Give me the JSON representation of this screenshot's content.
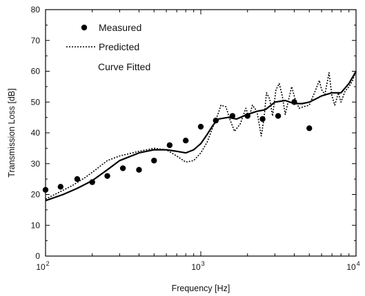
{
  "chart_data": {
    "type": "scatter",
    "title": "",
    "xlabel": "Frequency [Hz]",
    "ylabel": "Transmission Loss [dB]",
    "xscale": "log",
    "xlim": [
      100,
      10000
    ],
    "ylim": [
      0,
      80
    ],
    "x_ticks": [
      {
        "value": 100,
        "base": "10",
        "exp": "2"
      },
      {
        "value": 1000,
        "base": "10",
        "exp": "3"
      },
      {
        "value": 10000,
        "base": "10",
        "exp": "4"
      }
    ],
    "y_ticks": [
      {
        "value": 0,
        "label": "0"
      },
      {
        "value": 10,
        "label": "10"
      },
      {
        "value": 20,
        "label": "20"
      },
      {
        "value": 30,
        "label": "30"
      },
      {
        "value": 40,
        "label": "40"
      },
      {
        "value": 50,
        "label": "50"
      },
      {
        "value": 60,
        "label": "60"
      },
      {
        "value": 70,
        "label": "70"
      },
      {
        "value": 80,
        "label": "80"
      }
    ],
    "grid": false,
    "legend_position": "top-left",
    "series": [
      {
        "name": "Measured",
        "style": "marker",
        "color": "#000000",
        "points": [
          [
            100,
            21.5
          ],
          [
            125,
            22.5
          ],
          [
            160,
            25
          ],
          [
            200,
            24
          ],
          [
            250,
            26
          ],
          [
            315,
            28.5
          ],
          [
            400,
            28
          ],
          [
            500,
            31
          ],
          [
            630,
            36
          ],
          [
            800,
            37.5
          ],
          [
            1000,
            42
          ],
          [
            1250,
            44
          ],
          [
            1600,
            45.5
          ],
          [
            2000,
            45.5
          ],
          [
            2500,
            44.5
          ],
          [
            3150,
            45.5
          ],
          [
            4000,
            50
          ],
          [
            5000,
            41.5
          ]
        ]
      },
      {
        "name": "Predicted",
        "style": "dotted",
        "color": "#000000",
        "points": [
          [
            100,
            18.5
          ],
          [
            120,
            20.5
          ],
          [
            150,
            23
          ],
          [
            180,
            25.5
          ],
          [
            210,
            28
          ],
          [
            250,
            31
          ],
          [
            300,
            32.5
          ],
          [
            400,
            34
          ],
          [
            500,
            35
          ],
          [
            600,
            34.5
          ],
          [
            700,
            32.5
          ],
          [
            800,
            30.5
          ],
          [
            900,
            31
          ],
          [
            1000,
            33.5
          ],
          [
            1100,
            37
          ],
          [
            1200,
            42
          ],
          [
            1300,
            46.5
          ],
          [
            1350,
            49
          ],
          [
            1450,
            48.5
          ],
          [
            1550,
            44
          ],
          [
            1650,
            40.5
          ],
          [
            1800,
            43
          ],
          [
            1950,
            48
          ],
          [
            2050,
            45
          ],
          [
            2150,
            49
          ],
          [
            2300,
            47
          ],
          [
            2450,
            39
          ],
          [
            2550,
            44.5
          ],
          [
            2650,
            53
          ],
          [
            2780,
            51
          ],
          [
            2900,
            45.5
          ],
          [
            3050,
            54
          ],
          [
            3200,
            56
          ],
          [
            3350,
            52
          ],
          [
            3500,
            46
          ],
          [
            3650,
            50
          ],
          [
            3850,
            55
          ],
          [
            4050,
            51
          ],
          [
            4300,
            48
          ],
          [
            4600,
            48.5
          ],
          [
            5000,
            49
          ],
          [
            5500,
            54
          ],
          [
            5800,
            57
          ],
          [
            6000,
            54
          ],
          [
            6300,
            52.5
          ],
          [
            6700,
            59.5
          ],
          [
            7000,
            52
          ],
          [
            7300,
            49
          ],
          [
            7700,
            53
          ],
          [
            8000,
            50
          ],
          [
            8500,
            53.5
          ],
          [
            9000,
            55
          ],
          [
            9500,
            57
          ],
          [
            10000,
            60
          ]
        ]
      },
      {
        "name": "Curve Fitted",
        "style": "solid",
        "color": "#000000",
        "points": [
          [
            100,
            18
          ],
          [
            130,
            20
          ],
          [
            160,
            22
          ],
          [
            200,
            24.5
          ],
          [
            250,
            28
          ],
          [
            300,
            31
          ],
          [
            400,
            33.5
          ],
          [
            500,
            34.5
          ],
          [
            600,
            34.5
          ],
          [
            700,
            34
          ],
          [
            800,
            33.5
          ],
          [
            900,
            34.5
          ],
          [
            1000,
            36.5
          ],
          [
            1100,
            39.5
          ],
          [
            1200,
            42.5
          ],
          [
            1300,
            44.5
          ],
          [
            1500,
            45
          ],
          [
            1700,
            44.5
          ],
          [
            2000,
            46
          ],
          [
            2300,
            47
          ],
          [
            2600,
            47.5
          ],
          [
            3000,
            50
          ],
          [
            3500,
            50.5
          ],
          [
            4000,
            49.5
          ],
          [
            4500,
            49.5
          ],
          [
            5000,
            50
          ],
          [
            5500,
            51
          ],
          [
            6000,
            52
          ],
          [
            7000,
            53
          ],
          [
            8000,
            53
          ],
          [
            9000,
            56
          ],
          [
            10000,
            60
          ]
        ]
      }
    ]
  }
}
